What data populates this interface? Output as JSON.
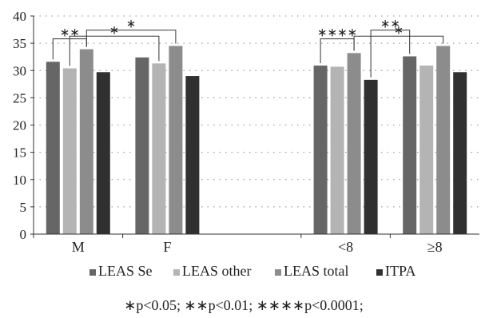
{
  "chart_data": {
    "type": "bar",
    "title": "",
    "xlabel": "",
    "ylabel": "",
    "ylim": [
      0,
      40
    ],
    "yticks": [
      0,
      5,
      10,
      15,
      20,
      25,
      30,
      35,
      40
    ],
    "grid": "dotted horizontal",
    "legend_position": "bottom",
    "categories": [
      "M",
      "F",
      "",
      "<8",
      "≥8"
    ],
    "series": [
      {
        "name": "LEAS Se",
        "color": "#666666",
        "values": [
          31.6,
          32.4,
          null,
          30.9,
          32.6
        ]
      },
      {
        "name": "LEAS other",
        "color": "#b4b4b4",
        "values": [
          30.4,
          31.3,
          null,
          30.7,
          30.9
        ]
      },
      {
        "name": "LEAS total",
        "color": "#8c8c8c",
        "values": [
          33.9,
          34.5,
          null,
          33.2,
          34.5
        ]
      },
      {
        "name": "ITPA",
        "color": "#303030",
        "values": [
          29.7,
          29.0,
          null,
          28.3,
          29.7
        ]
      }
    ],
    "significance_brackets": [
      {
        "label": "**",
        "category": "M",
        "from_series": 0,
        "to_series": 2,
        "level": 0
      },
      {
        "label": "*",
        "category": "M/F",
        "from_series": 1,
        "to_series": 5,
        "level": 1
      },
      {
        "label": "*",
        "category": "M/F",
        "from_series": 2,
        "to_series": 6,
        "level": 2
      },
      {
        "label": "****",
        "category": "<8",
        "from_series": 0,
        "to_series": 2,
        "level": 0
      },
      {
        "label": "*",
        "category": "<8/≥8",
        "from_series": 2,
        "to_series": 6,
        "level": 1
      },
      {
        "label": "**",
        "category": "<8/≥8",
        "from_series": 3,
        "to_series": 4,
        "level": 2
      }
    ],
    "footnote": "∗p<0.05;   ∗∗p<0.01;   ∗∗∗∗p<0.0001;"
  }
}
